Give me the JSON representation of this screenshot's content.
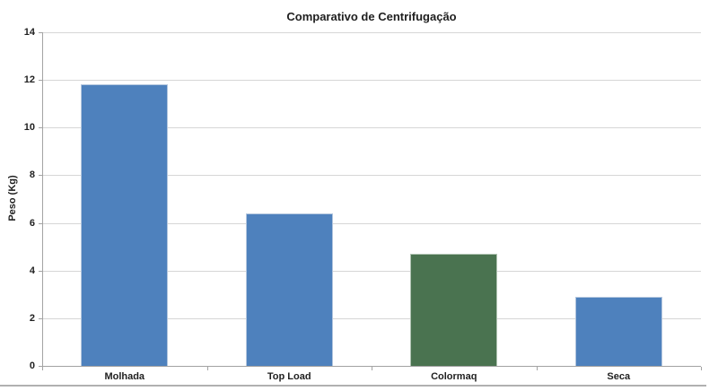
{
  "chart_data": {
    "type": "bar",
    "title": "Comparativo de Centrifugação",
    "xlabel": "",
    "ylabel": "Peso (Kg)",
    "categories": [
      "Molhada",
      "Top Load",
      "Colormaq",
      "Seca"
    ],
    "values": [
      11.8,
      6.4,
      4.7,
      2.9
    ],
    "bar_colors": [
      "#4e81bd",
      "#4e81bd",
      "#4a7350",
      "#4e81bd"
    ],
    "bar_border_colors": [
      "#b3c6de",
      "#b3c6de",
      "#aec2b0",
      "#b3c6de"
    ],
    "ylim": [
      0,
      14
    ],
    "ytick_step": 2,
    "ytick_labels": [
      "0",
      "2",
      "4",
      "6",
      "8",
      "10",
      "12",
      "14"
    ],
    "grid": "horizontal-only",
    "legend": "none"
  },
  "colors": {
    "background": "#ffffff",
    "gridline": "#d6d6d6",
    "axis_line": "#a3a3a3",
    "text": "#1f1f1f",
    "frame_bottom_line": "#b0b0b0"
  }
}
